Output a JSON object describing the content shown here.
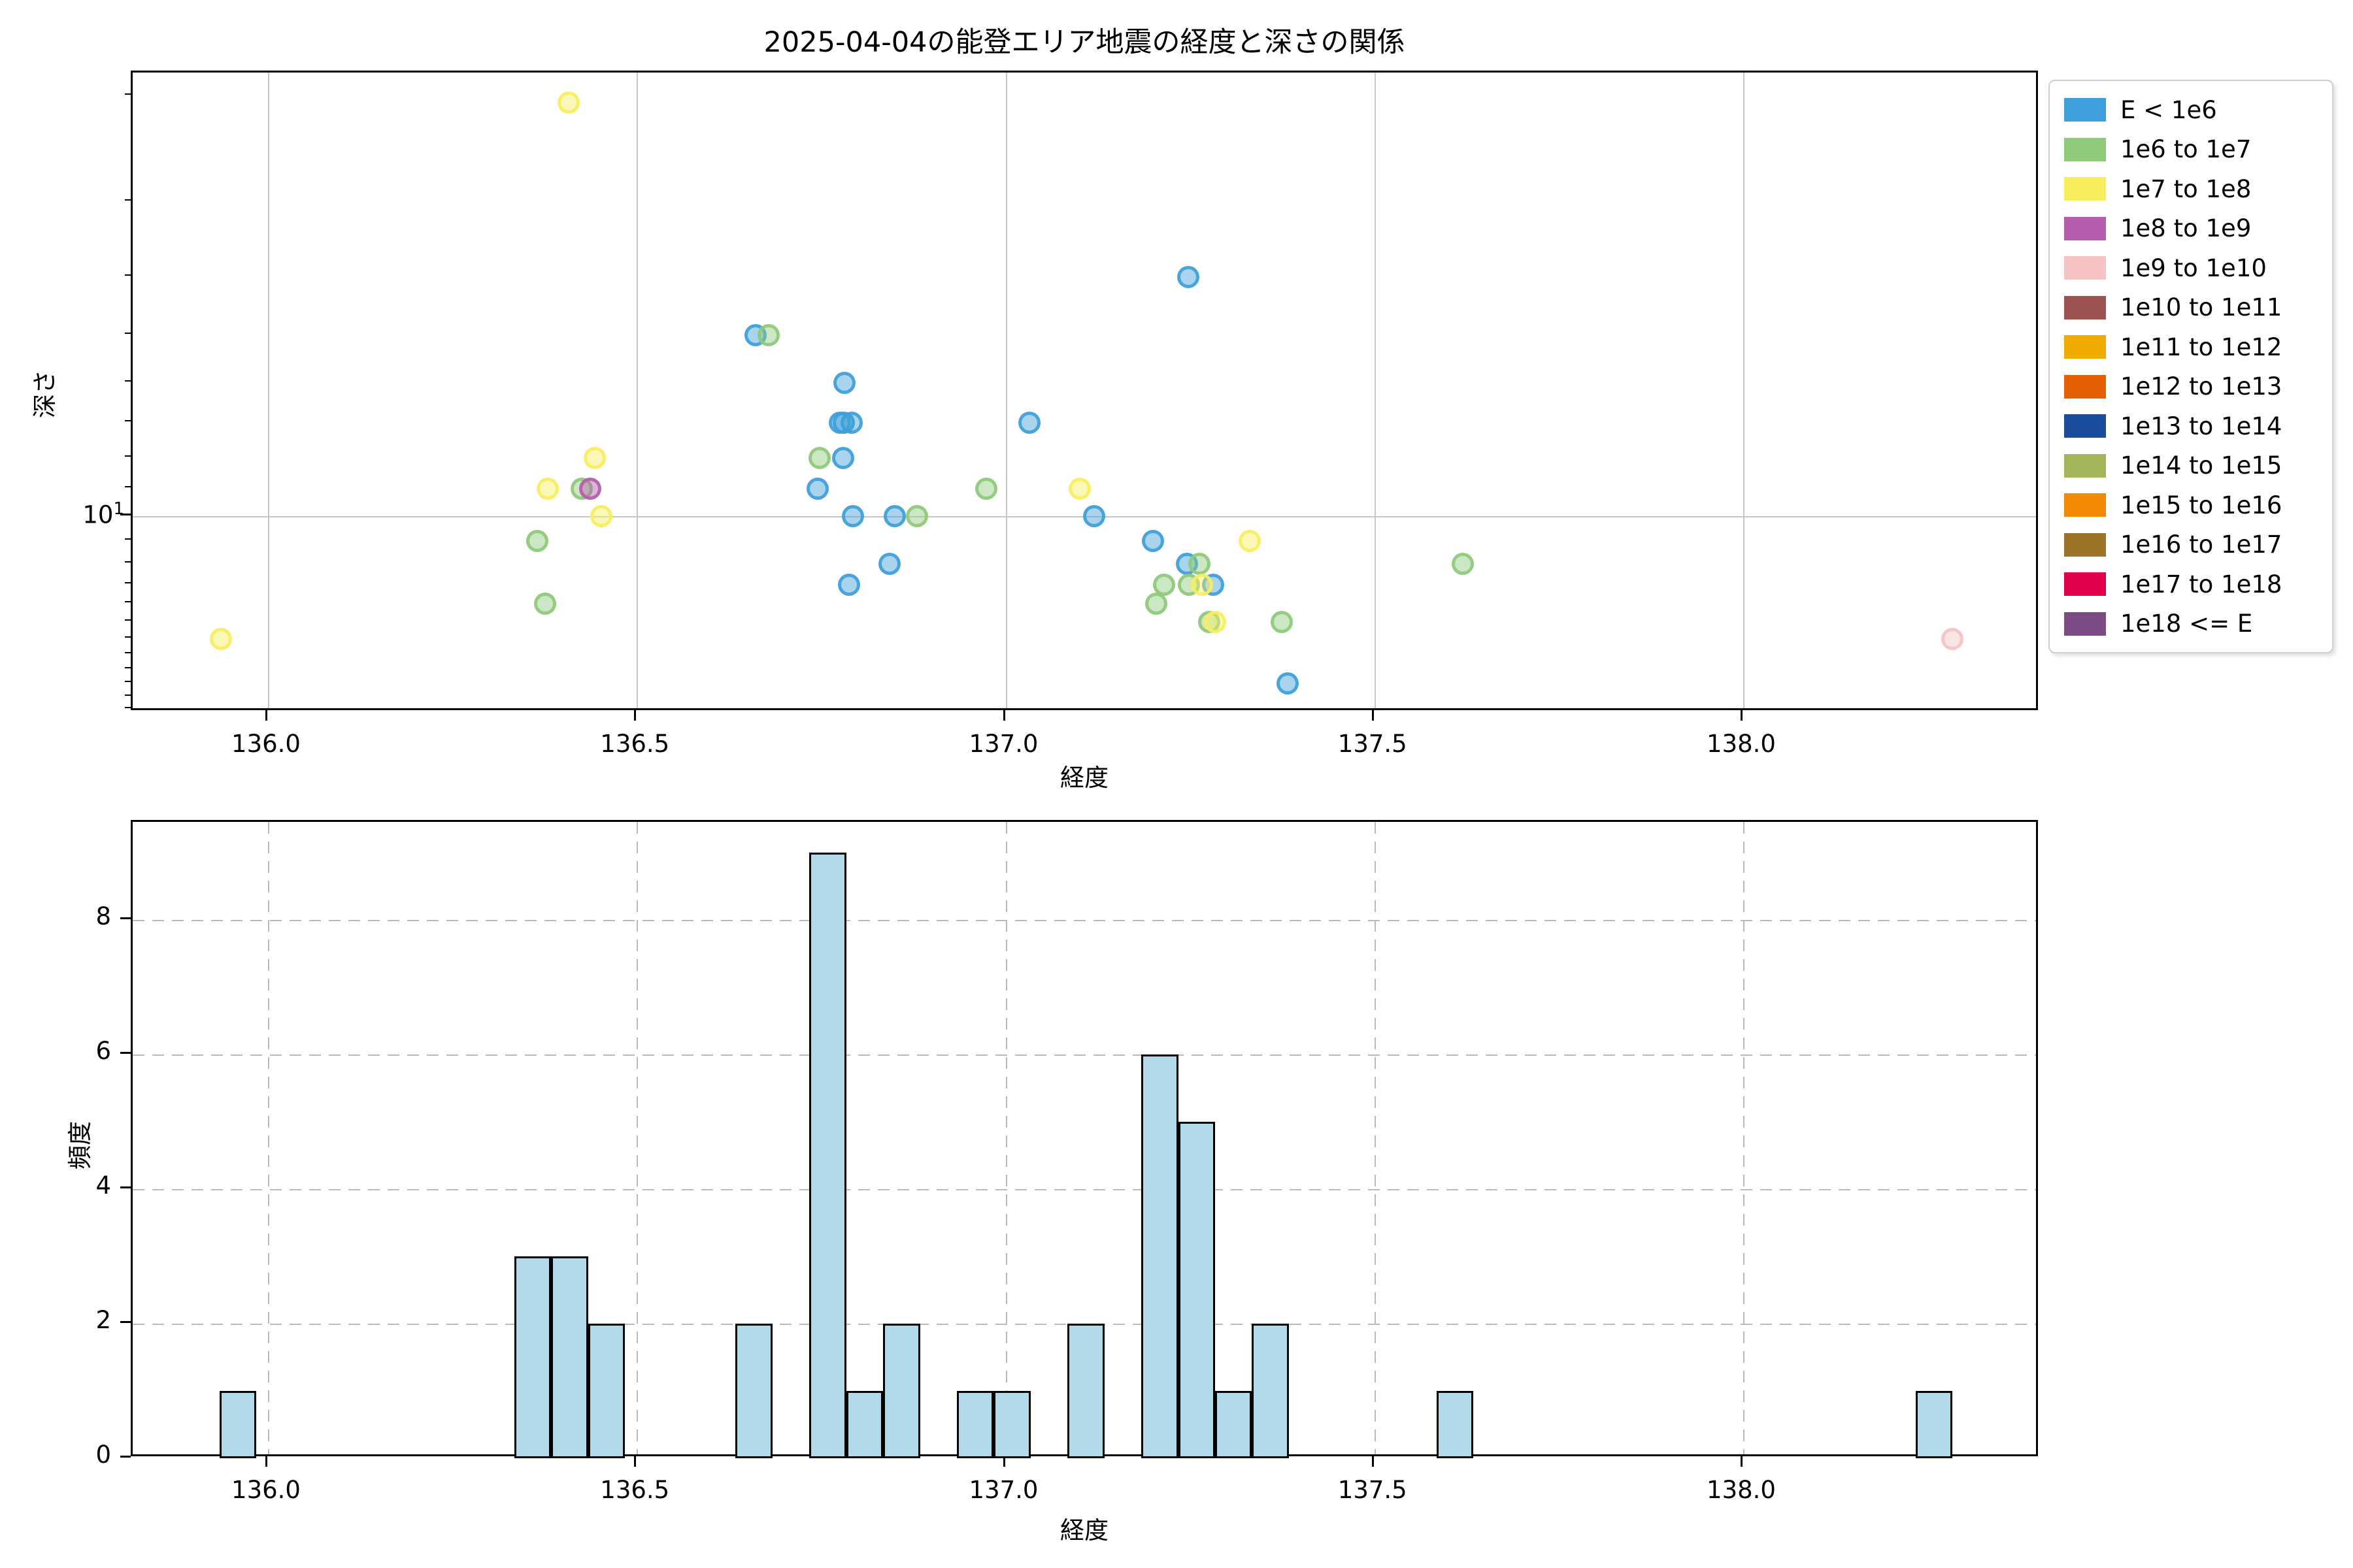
{
  "title": "2025-04-04の能登エリア地震の経度と深さの関係",
  "scatter": {
    "xlabel": "経度",
    "ylabel": "深さ",
    "ytick_base": "10",
    "ytick_exp": "1"
  },
  "hist": {
    "xlabel": "経度",
    "ylabel": "頻度"
  },
  "legend": [
    {
      "label": "E < 1e6",
      "color": "#3f9fda"
    },
    {
      "label": "1e6 to 1e7",
      "color": "#8fc97a"
    },
    {
      "label": "1e7 to 1e8",
      "color": "#f7ee5d"
    },
    {
      "label": "1e8 to 1e9",
      "color": "#b65cad"
    },
    {
      "label": "1e9 to 1e10",
      "color": "#f5c3c4"
    },
    {
      "label": "1e10 to 1e11",
      "color": "#9d5352"
    },
    {
      "label": "1e11 to 1e12",
      "color": "#f1ab00"
    },
    {
      "label": "1e12 to 1e13",
      "color": "#e65f05"
    },
    {
      "label": "1e13 to 1e14",
      "color": "#1c4d9c"
    },
    {
      "label": "1e14 to 1e15",
      "color": "#a3b559"
    },
    {
      "label": "1e15 to 1e16",
      "color": "#f28a05"
    },
    {
      "label": "1e16 to 1e17",
      "color": "#9b7427"
    },
    {
      "label": "1e17 to 1e18",
      "color": "#e2004e"
    },
    {
      "label": "1e18 <= E",
      "color": "#7c4a85"
    }
  ],
  "chart_data": [
    {
      "type": "scatter",
      "title": "2025-04-04の能登エリア地震の経度と深さの関係",
      "xlabel": "経度",
      "ylabel": "深さ",
      "x_range": [
        135.82,
        138.4
      ],
      "y_axis": {
        "scale": "log",
        "inverted": true,
        "depth_range": [
          1.83,
          21.2
        ],
        "major_tick": 10,
        "minor_ticks": [
          2,
          3,
          4,
          5,
          6,
          7,
          8,
          9,
          11,
          12,
          13,
          14,
          15,
          16,
          17,
          18,
          19,
          20,
          21
        ]
      },
      "xticks": [
        {
          "v": 136.0,
          "label": "136.0"
        },
        {
          "v": 136.5,
          "label": "136.5"
        },
        {
          "v": 137.0,
          "label": "137.0"
        },
        {
          "v": 137.5,
          "label": "137.5"
        },
        {
          "v": 138.0,
          "label": "138.0"
        }
      ],
      "grid": "solid gray, major only",
      "legend_position": "outside upper right",
      "series": [
        {
          "name": "E < 1e6",
          "legend_index": 0,
          "color": "#3f9fda",
          "points": [
            [
              136.661,
              5
            ],
            [
              136.745,
              9
            ],
            [
              136.78,
              8
            ],
            [
              136.775,
              7
            ],
            [
              136.781,
              7
            ],
            [
              136.791,
              7
            ],
            [
              136.782,
              6
            ],
            [
              136.788,
              13
            ],
            [
              136.793,
              10
            ],
            [
              136.843,
              12
            ],
            [
              136.85,
              10
            ],
            [
              137.032,
              7
            ],
            [
              137.12,
              10
            ],
            [
              137.248,
              4
            ],
            [
              137.2,
              11
            ],
            [
              137.246,
              12
            ],
            [
              137.281,
              13
            ],
            [
              137.382,
              19
            ]
          ]
        },
        {
          "name": "1e6 to 1e7",
          "legend_index": 1,
          "color": "#8fc97a",
          "points": [
            [
              136.679,
              5
            ],
            [
              136.425,
              9
            ],
            [
              136.365,
              11
            ],
            [
              136.376,
              14
            ],
            [
              136.748,
              8
            ],
            [
              136.88,
              10
            ],
            [
              136.974,
              9
            ],
            [
              137.263,
              12
            ],
            [
              137.215,
              13
            ],
            [
              137.249,
              13
            ],
            [
              137.204,
              14
            ],
            [
              137.276,
              15
            ],
            [
              137.374,
              15
            ],
            [
              137.62,
              12
            ]
          ]
        },
        {
          "name": "1e7 to 1e8",
          "legend_index": 2,
          "color": "#f7ee5d",
          "points": [
            [
              135.936,
              16
            ],
            [
              136.408,
              2.05
            ],
            [
              136.443,
              8
            ],
            [
              136.379,
              9
            ],
            [
              136.452,
              10
            ],
            [
              137.101,
              9
            ],
            [
              137.331,
              11
            ],
            [
              137.266,
              13
            ],
            [
              137.284,
              15
            ]
          ]
        },
        {
          "name": "1e8 to 1e9",
          "legend_index": 3,
          "color": "#b65cad",
          "points": [
            [
              136.437,
              9
            ]
          ]
        },
        {
          "name": "1e9 to 1e10",
          "legend_index": 4,
          "color": "#f5c3c4",
          "points": [
            [
              138.284,
              16
            ]
          ]
        }
      ]
    },
    {
      "type": "bar",
      "subtype": "histogram",
      "xlabel": "経度",
      "ylabel": "頻度",
      "bar_fill": "#b2d9e8",
      "bin_width": 0.05,
      "x_range": [
        135.82,
        138.4
      ],
      "ylim": [
        0,
        9.45
      ],
      "yticks": [
        {
          "v": 0,
          "label": "0"
        },
        {
          "v": 2,
          "label": "2"
        },
        {
          "v": 4,
          "label": "4"
        },
        {
          "v": 6,
          "label": "6"
        },
        {
          "v": 8,
          "label": "8"
        }
      ],
      "xticks": [
        {
          "v": 136.0,
          "label": "136.0"
        },
        {
          "v": 136.5,
          "label": "136.5"
        },
        {
          "v": 137.0,
          "label": "137.0"
        },
        {
          "v": 137.5,
          "label": "137.5"
        },
        {
          "v": 138.0,
          "label": "138.0"
        }
      ],
      "grid": "dashed gray",
      "bins": [
        {
          "x0": 135.934,
          "x1": 135.984,
          "count": 1
        },
        {
          "x0": 136.334,
          "x1": 136.384,
          "count": 3
        },
        {
          "x0": 136.384,
          "x1": 136.434,
          "count": 3
        },
        {
          "x0": 136.434,
          "x1": 136.484,
          "count": 2
        },
        {
          "x0": 136.634,
          "x1": 136.684,
          "count": 2
        },
        {
          "x0": 136.734,
          "x1": 136.784,
          "count": 9
        },
        {
          "x0": 136.784,
          "x1": 136.834,
          "count": 1
        },
        {
          "x0": 136.834,
          "x1": 136.884,
          "count": 2
        },
        {
          "x0": 136.934,
          "x1": 136.984,
          "count": 1
        },
        {
          "x0": 136.984,
          "x1": 137.034,
          "count": 1
        },
        {
          "x0": 137.084,
          "x1": 137.134,
          "count": 2
        },
        {
          "x0": 137.184,
          "x1": 137.234,
          "count": 6
        },
        {
          "x0": 137.234,
          "x1": 137.284,
          "count": 5
        },
        {
          "x0": 137.284,
          "x1": 137.334,
          "count": 1
        },
        {
          "x0": 137.334,
          "x1": 137.384,
          "count": 2
        },
        {
          "x0": 137.584,
          "x1": 137.634,
          "count": 1
        },
        {
          "x0": 138.234,
          "x1": 138.284,
          "count": 1
        }
      ]
    }
  ]
}
